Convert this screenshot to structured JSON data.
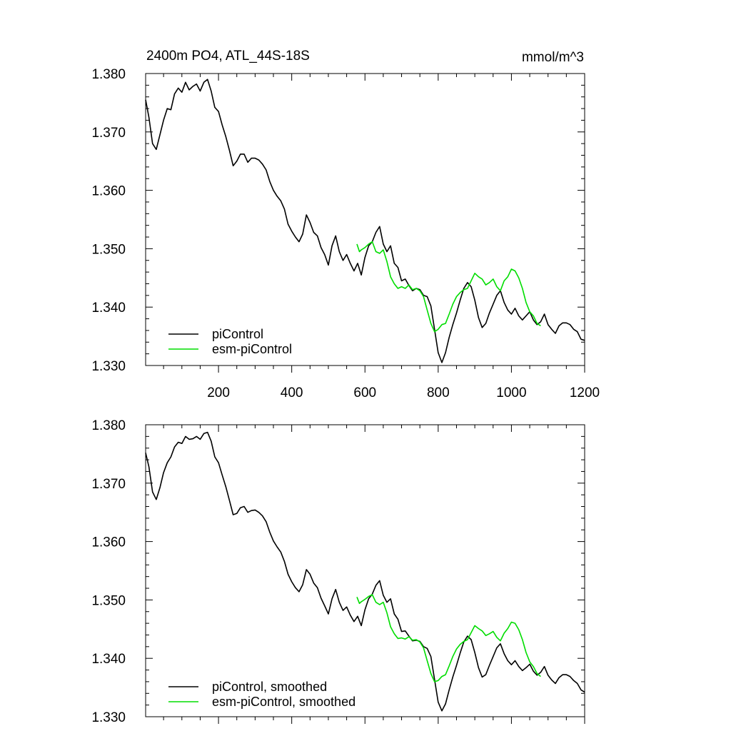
{
  "chart_data": [
    {
      "type": "line",
      "title": "2400m PO4, ATL_44S-18S",
      "units_label": "mmol/m^3",
      "xlim": [
        1,
        1200
      ],
      "ylim": [
        1.33,
        1.38
      ],
      "xticks": [
        200,
        400,
        600,
        800,
        1000,
        1200
      ],
      "xtick_labels": [
        "200",
        "400",
        "600",
        "800",
        "1000",
        "1200"
      ],
      "yticks": [
        1.33,
        1.34,
        1.35,
        1.36,
        1.37,
        1.38
      ],
      "ytick_labels": [
        "1.330",
        "1.340",
        "1.350",
        "1.360",
        "1.370",
        "1.380"
      ],
      "legend_position": "bottom-left",
      "series": [
        {
          "name": "piControl",
          "color": "#000000",
          "x": [
            1,
            10,
            20,
            30,
            40,
            50,
            60,
            70,
            80,
            90,
            100,
            110,
            120,
            130,
            140,
            150,
            160,
            170,
            180,
            190,
            200,
            210,
            220,
            230,
            240,
            250,
            260,
            270,
            280,
            290,
            300,
            310,
            320,
            330,
            340,
            350,
            360,
            370,
            380,
            390,
            400,
            410,
            420,
            430,
            440,
            450,
            460,
            470,
            480,
            490,
            500,
            510,
            520,
            530,
            540,
            550,
            560,
            570,
            580,
            590,
            600,
            610,
            620,
            630,
            640,
            650,
            660,
            670,
            680,
            690,
            700,
            710,
            720,
            730,
            740,
            750,
            760,
            770,
            780,
            790,
            800,
            810,
            820,
            830,
            840,
            850,
            860,
            870,
            880,
            890,
            900,
            910,
            920,
            930,
            940,
            950,
            960,
            970,
            980,
            990,
            1000,
            1010,
            1020,
            1030,
            1040,
            1050,
            1060,
            1070,
            1080,
            1090,
            1100,
            1110,
            1120,
            1130,
            1140,
            1150,
            1160,
            1170,
            1180,
            1190,
            1200
          ],
          "y": [
            1.3755,
            1.3725,
            1.368,
            1.367,
            1.3695,
            1.372,
            1.374,
            1.3738,
            1.3765,
            1.3775,
            1.3768,
            1.3785,
            1.3772,
            1.3778,
            1.3782,
            1.377,
            1.3785,
            1.379,
            1.377,
            1.3742,
            1.3735,
            1.3712,
            1.3692,
            1.3668,
            1.3642,
            1.365,
            1.3662,
            1.3662,
            1.3648,
            1.3655,
            1.3655,
            1.3652,
            1.3645,
            1.3635,
            1.3615,
            1.36,
            1.359,
            1.3582,
            1.3568,
            1.3542,
            1.353,
            1.352,
            1.3512,
            1.3525,
            1.3558,
            1.3545,
            1.3528,
            1.3522,
            1.3502,
            1.349,
            1.3472,
            1.3505,
            1.3522,
            1.3495,
            1.348,
            1.349,
            1.3475,
            1.3462,
            1.3475,
            1.3455,
            1.3485,
            1.3505,
            1.3512,
            1.3528,
            1.3538,
            1.3508,
            1.3495,
            1.3505,
            1.3475,
            1.3468,
            1.3445,
            1.3448,
            1.3437,
            1.3428,
            1.3432,
            1.343,
            1.342,
            1.3418,
            1.3402,
            1.3362,
            1.3322,
            1.3305,
            1.3322,
            1.3348,
            1.337,
            1.339,
            1.3412,
            1.3432,
            1.3442,
            1.3435,
            1.3412,
            1.3382,
            1.3365,
            1.3372,
            1.339,
            1.3405,
            1.342,
            1.3428,
            1.3408,
            1.3395,
            1.3388,
            1.3398,
            1.3385,
            1.3378,
            1.3385,
            1.3392,
            1.3378,
            1.337,
            1.3375,
            1.3388,
            1.337,
            1.3362,
            1.3355,
            1.3368,
            1.3373,
            1.3373,
            1.337,
            1.3362,
            1.3358,
            1.3345,
            1.3343
          ]
        },
        {
          "name": "esm-piControl",
          "color": "#00dd00",
          "x": [
            578,
            585,
            590,
            600,
            610,
            620,
            630,
            640,
            650,
            660,
            670,
            680,
            690,
            700,
            710,
            720,
            730,
            740,
            750,
            760,
            770,
            780,
            790,
            800,
            810,
            820,
            830,
            840,
            850,
            860,
            870,
            880,
            890,
            900,
            910,
            920,
            930,
            940,
            950,
            960,
            970,
            980,
            990,
            1000,
            1010,
            1020,
            1030,
            1040,
            1050,
            1060,
            1070,
            1080
          ],
          "y": [
            1.3508,
            1.3495,
            1.3498,
            1.3502,
            1.3508,
            1.3512,
            1.3495,
            1.3492,
            1.3498,
            1.3478,
            1.3452,
            1.344,
            1.3432,
            1.3435,
            1.3432,
            1.3438,
            1.343,
            1.3432,
            1.3428,
            1.3418,
            1.3395,
            1.3372,
            1.3358,
            1.3362,
            1.337,
            1.3372,
            1.3388,
            1.3405,
            1.3418,
            1.3425,
            1.343,
            1.3432,
            1.3445,
            1.3458,
            1.3452,
            1.3448,
            1.3438,
            1.3442,
            1.3448,
            1.3435,
            1.3428,
            1.3445,
            1.3452,
            1.3465,
            1.3462,
            1.345,
            1.3432,
            1.3408,
            1.3392,
            1.3385,
            1.3372,
            1.3368
          ]
        }
      ]
    },
    {
      "type": "line",
      "xlim": [
        1,
        1200
      ],
      "ylim": [
        1.33,
        1.38
      ],
      "xticks": [
        200,
        400,
        600,
        800,
        1000,
        1200
      ],
      "yticks": [
        1.33,
        1.34,
        1.35,
        1.36,
        1.37,
        1.38
      ],
      "ytick_labels": [
        "1.330",
        "1.340",
        "1.350",
        "1.360",
        "1.370",
        "1.380"
      ],
      "legend_position": "bottom-left",
      "series": [
        {
          "name": "piControl, smoothed",
          "color": "#000000",
          "x": [
            1,
            10,
            20,
            30,
            40,
            50,
            60,
            70,
            80,
            90,
            100,
            110,
            120,
            130,
            140,
            150,
            160,
            170,
            180,
            190,
            200,
            210,
            220,
            230,
            240,
            250,
            260,
            270,
            280,
            290,
            300,
            310,
            320,
            330,
            340,
            350,
            360,
            370,
            380,
            390,
            400,
            410,
            420,
            430,
            440,
            450,
            460,
            470,
            480,
            490,
            500,
            510,
            520,
            530,
            540,
            550,
            560,
            570,
            580,
            590,
            600,
            610,
            620,
            630,
            640,
            650,
            660,
            670,
            680,
            690,
            700,
            710,
            720,
            730,
            740,
            750,
            760,
            770,
            780,
            790,
            800,
            810,
            820,
            830,
            840,
            850,
            860,
            870,
            880,
            890,
            900,
            910,
            920,
            930,
            940,
            950,
            960,
            970,
            980,
            990,
            1000,
            1010,
            1020,
            1030,
            1040,
            1050,
            1060,
            1070,
            1080,
            1090,
            1100,
            1110,
            1120,
            1130,
            1140,
            1150,
            1160,
            1170,
            1180,
            1190,
            1200
          ],
          "y": [
            1.3752,
            1.3728,
            1.3685,
            1.3672,
            1.3692,
            1.3718,
            1.3735,
            1.3745,
            1.3762,
            1.377,
            1.3768,
            1.378,
            1.3775,
            1.3776,
            1.378,
            1.3775,
            1.3785,
            1.3787,
            1.3772,
            1.3745,
            1.3735,
            1.3714,
            1.3694,
            1.367,
            1.3646,
            1.3648,
            1.3658,
            1.366,
            1.365,
            1.3653,
            1.3654,
            1.365,
            1.3644,
            1.3634,
            1.3616,
            1.3601,
            1.3591,
            1.3582,
            1.3566,
            1.3544,
            1.3531,
            1.3521,
            1.3514,
            1.3526,
            1.3552,
            1.3544,
            1.3529,
            1.3521,
            1.3503,
            1.349,
            1.3476,
            1.3502,
            1.3518,
            1.3496,
            1.3482,
            1.3488,
            1.3474,
            1.3463,
            1.3472,
            1.3456,
            1.3483,
            1.3502,
            1.351,
            1.3525,
            1.3533,
            1.3508,
            1.3496,
            1.3502,
            1.3476,
            1.3467,
            1.3446,
            1.3447,
            1.3438,
            1.343,
            1.3431,
            1.3429,
            1.342,
            1.3417,
            1.3403,
            1.3364,
            1.3325,
            1.331,
            1.3322,
            1.3346,
            1.3368,
            1.3388,
            1.3409,
            1.3428,
            1.3438,
            1.3432,
            1.341,
            1.3384,
            1.3368,
            1.3372,
            1.3388,
            1.3403,
            1.3418,
            1.3425,
            1.3408,
            1.3396,
            1.3389,
            1.3396,
            1.3386,
            1.3379,
            1.3384,
            1.339,
            1.3378,
            1.3371,
            1.3376,
            1.3386,
            1.3371,
            1.3363,
            1.3357,
            1.3367,
            1.3372,
            1.3372,
            1.3369,
            1.3362,
            1.3357,
            1.3346,
            1.3342
          ]
        },
        {
          "name": "esm-piControl, smoothed",
          "color": "#00dd00",
          "x": [
            578,
            585,
            590,
            600,
            610,
            620,
            630,
            640,
            650,
            660,
            670,
            680,
            690,
            700,
            710,
            720,
            730,
            740,
            750,
            760,
            770,
            780,
            790,
            800,
            810,
            820,
            830,
            840,
            850,
            860,
            870,
            880,
            890,
            900,
            910,
            920,
            930,
            940,
            950,
            960,
            970,
            980,
            990,
            1000,
            1010,
            1020,
            1030,
            1040,
            1050,
            1060,
            1070,
            1080
          ],
          "y": [
            1.3505,
            1.3494,
            1.3497,
            1.3501,
            1.3506,
            1.3509,
            1.3496,
            1.3492,
            1.3496,
            1.3478,
            1.3454,
            1.3442,
            1.3434,
            1.3435,
            1.3433,
            1.3437,
            1.3431,
            1.3432,
            1.3428,
            1.3418,
            1.3396,
            1.3374,
            1.336,
            1.3362,
            1.3369,
            1.3372,
            1.3387,
            1.3403,
            1.3416,
            1.3424,
            1.3429,
            1.3432,
            1.3444,
            1.3456,
            1.3451,
            1.3447,
            1.3439,
            1.3442,
            1.3446,
            1.3436,
            1.343,
            1.3443,
            1.3451,
            1.3462,
            1.346,
            1.3449,
            1.3432,
            1.341,
            1.3394,
            1.3386,
            1.3374,
            1.3369
          ]
        }
      ]
    }
  ]
}
